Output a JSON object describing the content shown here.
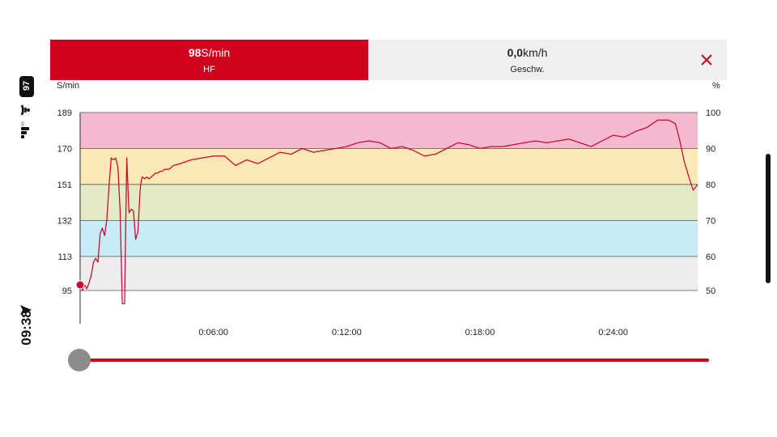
{
  "status": {
    "battery": "97",
    "time": "09:38"
  },
  "header": {
    "hf_value": "98",
    "hf_unit": "S/min",
    "hf_label": "HF",
    "speed_value": "0,0",
    "speed_unit": "km/h",
    "speed_label": "Geschw.",
    "close_icon": "close-icon"
  },
  "chart_data": {
    "type": "line",
    "left_axis_label": "S/min",
    "right_axis_label": "%",
    "ylim": [
      85,
      200
    ],
    "left_ticks": [
      "189",
      "170",
      "151",
      "132",
      "113",
      "95"
    ],
    "left_tick_values": [
      189,
      170,
      151,
      132,
      113,
      95
    ],
    "right_ticks": [
      "100",
      "90",
      "80",
      "70",
      "60",
      "50"
    ],
    "x_ticks": [
      "0:06:00",
      "0:12:00",
      "0:18:00",
      "0:24:00"
    ],
    "x_tick_minutes": [
      6,
      12,
      18,
      24
    ],
    "xlim_minutes": [
      0,
      27.8
    ],
    "zones": [
      {
        "from": 170,
        "to": 189,
        "color": "#f4b8cf"
      },
      {
        "from": 151,
        "to": 170,
        "color": "#fbe8b5"
      },
      {
        "from": 132,
        "to": 151,
        "color": "#e4eac7"
      },
      {
        "from": 113,
        "to": 132,
        "color": "#c9ebf8"
      },
      {
        "from": 95,
        "to": 113,
        "color": "#ececec"
      }
    ],
    "line_color": "#c8102e",
    "series": [
      {
        "x": [
          0,
          0.1,
          0.2,
          0.3,
          0.4,
          0.5,
          0.6,
          0.7,
          0.8,
          0.9,
          1.0,
          1.1,
          1.2,
          1.3,
          1.4,
          1.5,
          1.6,
          1.7,
          1.8,
          1.9,
          2.0,
          2.1,
          2.2,
          2.3,
          2.4,
          2.5,
          2.6,
          2.7,
          2.75,
          2.8,
          2.9,
          3.0,
          3.1,
          3.2,
          3.3,
          3.4,
          3.5,
          3.6,
          3.7,
          3.8,
          4.0,
          4.2,
          4.5,
          5.0,
          5.5,
          6.0,
          6.5,
          7.0,
          7.5,
          8.0,
          8.5,
          9.0,
          9.5,
          10.0,
          10.5,
          11.0,
          11.5,
          12.0,
          12.5,
          13.0,
          13.5,
          14.0,
          14.5,
          15.0,
          15.5,
          16.0,
          16.5,
          17.0,
          17.5,
          18.0,
          18.5,
          19.0,
          19.5,
          20.0,
          20.5,
          21.0,
          21.5,
          22.0,
          22.5,
          23.0,
          23.5,
          24.0,
          24.5,
          25.0,
          25.5,
          26.0,
          26.5,
          26.8,
          27.0,
          27.2,
          27.4,
          27.6,
          27.8
        ],
        "y": [
          98,
          95,
          98,
          96,
          99,
          103,
          110,
          112,
          110,
          125,
          128,
          124,
          132,
          150,
          165,
          164,
          165,
          160,
          137,
          88,
          88,
          165,
          136,
          138,
          137,
          122,
          126,
          148,
          153,
          155,
          154,
          155,
          154,
          155,
          156,
          157,
          157,
          158,
          158,
          159,
          159,
          161,
          162,
          164,
          165,
          166,
          166,
          161,
          164,
          162,
          165,
          168,
          167,
          170,
          168,
          169,
          170,
          171,
          173,
          174,
          173,
          170,
          171,
          169,
          166,
          167,
          170,
          173,
          172,
          170,
          171,
          171,
          172,
          173,
          174,
          173,
          174,
          175,
          173,
          171,
          174,
          177,
          176,
          179,
          181,
          185,
          185,
          183,
          174,
          163,
          155,
          148,
          151
        ]
      }
    ]
  }
}
